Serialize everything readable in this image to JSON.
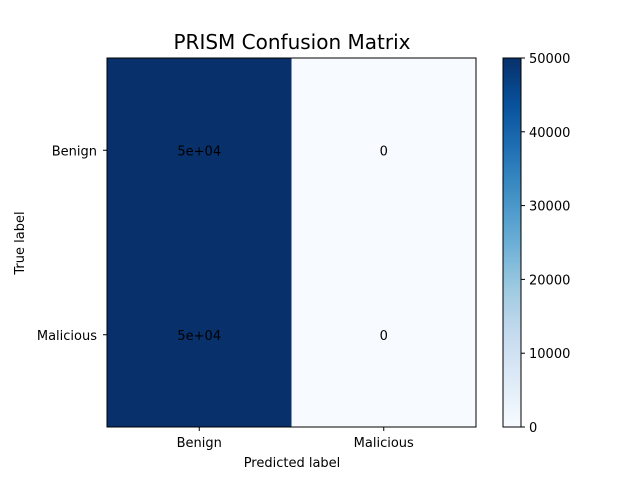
{
  "chart_data": {
    "type": "heatmap",
    "title": "PRISM Confusion Matrix",
    "xlabel": "Predicted label",
    "ylabel": "True label",
    "x_categories": [
      "Benign",
      "Malicious"
    ],
    "y_categories": [
      "Benign",
      "Malicious"
    ],
    "values": [
      [
        50000,
        0
      ],
      [
        50000,
        0
      ]
    ],
    "cell_labels": [
      [
        "5e+04",
        "0"
      ],
      [
        "5e+04",
        "0"
      ]
    ],
    "colormap": "Blues",
    "colorbar": {
      "range": [
        0,
        50000
      ],
      "ticks": [
        "0",
        "10000",
        "20000",
        "30000",
        "40000",
        "50000"
      ],
      "tick_values": [
        0,
        10000,
        20000,
        30000,
        40000,
        50000
      ]
    },
    "colors": {
      "max": "#08306b",
      "min": "#f7fbff"
    }
  }
}
